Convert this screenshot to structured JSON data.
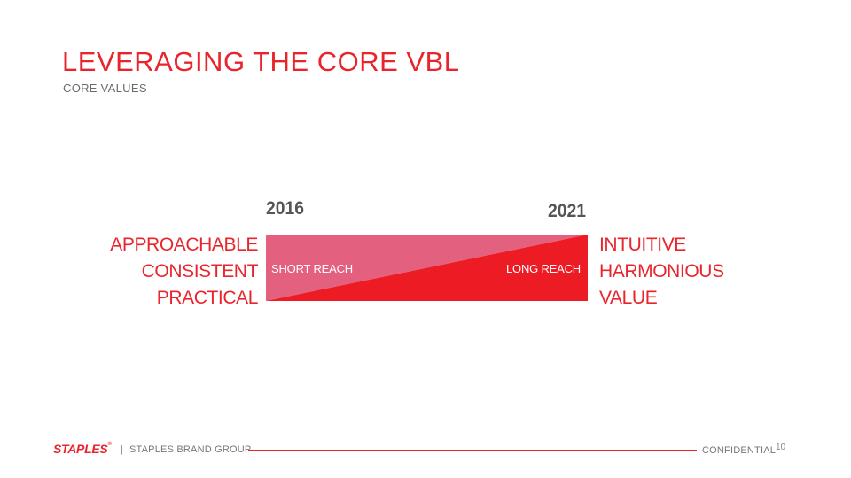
{
  "slide": {
    "title": "LEVERAGING THE CORE VBL",
    "subtitle": "CORE VALUES"
  },
  "diagram": {
    "year_start": "2016",
    "year_end": "2021",
    "values_start": [
      "APPROACHABLE",
      "CONSISTENT",
      "PRACTICAL"
    ],
    "values_end": [
      "INTUITIVE",
      "HARMONIOUS",
      "VALUE"
    ],
    "short_reach_label": "SHORT REACH",
    "long_reach_label": "LONG REACH",
    "colors": {
      "upper_triangle": "#e3617e",
      "lower_triangle": "#ed1c24"
    }
  },
  "footer": {
    "logo_text": "STAPLES",
    "logo_mark": "®",
    "separator": "|",
    "group": "STAPLES BRAND GROUP",
    "confidential": "CONFIDENTIAL",
    "page_number": "10"
  },
  "colors": {
    "accent": "#e8252d",
    "gray_text": "#6b6b6b"
  }
}
